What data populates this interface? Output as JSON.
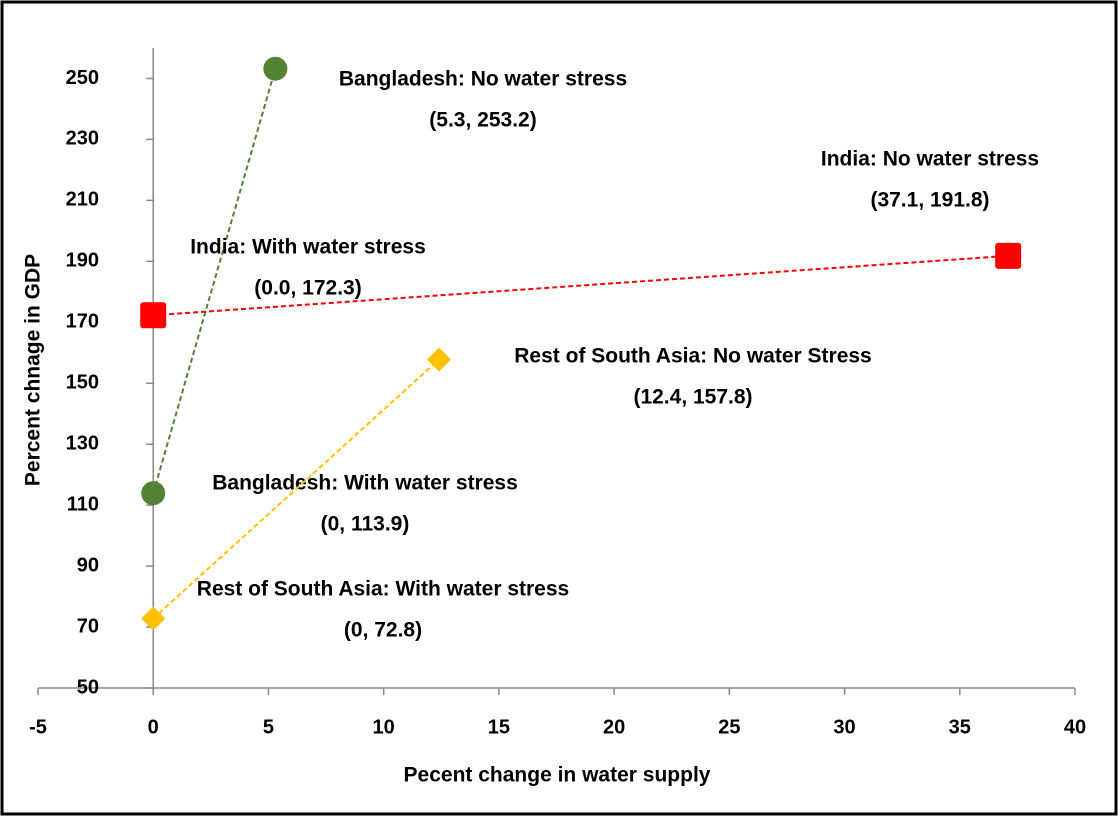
{
  "chart_data": {
    "type": "scatter",
    "xlabel": "Pecent change in water supply",
    "ylabel": "Percent chnage in GDP",
    "xlim": [
      -5,
      40
    ],
    "xticks": [
      -5,
      0,
      5,
      10,
      15,
      20,
      25,
      30,
      35,
      40
    ],
    "ylim": [
      50,
      260
    ],
    "yticks": [
      50,
      70,
      90,
      110,
      130,
      150,
      170,
      190,
      210,
      230,
      250
    ],
    "series": [
      {
        "name": "Bangladesh",
        "color": "#548235",
        "marker": "circle",
        "x": [
          0,
          5.3
        ],
        "values": [
          113.9,
          253.2
        ],
        "point_labels": [
          {
            "label": "Bangladesh: With water stress",
            "coords": "(0, 113.9)"
          },
          {
            "label": "Bangladesh: No water stress",
            "coords": "(5.3, 253.2)"
          }
        ]
      },
      {
        "name": "India",
        "color": "#ff0000",
        "marker": "square",
        "x": [
          0.0,
          37.1
        ],
        "values": [
          172.3,
          191.8
        ],
        "point_labels": [
          {
            "label": "India: With water stress",
            "coords": "(0.0, 172.3)"
          },
          {
            "label": "India: No water stress",
            "coords": "(37.1, 191.8)"
          }
        ]
      },
      {
        "name": "Rest of South Asia",
        "color": "#ffc000",
        "marker": "diamond",
        "x": [
          0,
          12.4
        ],
        "values": [
          72.8,
          157.8
        ],
        "point_labels": [
          {
            "label": "Rest of South Asia: With water stress",
            "coords": "(0, 72.8)"
          },
          {
            "label": "Rest of South Asia: No water Stress",
            "coords": "(12.4, 157.8)"
          }
        ]
      }
    ]
  }
}
